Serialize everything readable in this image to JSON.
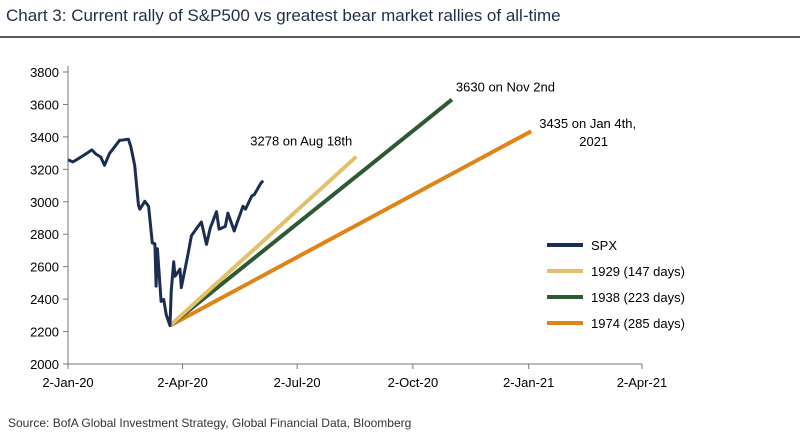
{
  "chart_data": {
    "type": "line",
    "title": "Chart 3: Current rally of S&P500 vs greatest bear market rallies of all-time",
    "source": "Source: BofA Global Investment Strategy, Global Financial Data, Bloomberg",
    "xlabel": "",
    "ylabel": "",
    "x_ticks": [
      "2-Jan-20",
      "2-Apr-20",
      "2-Jul-20",
      "2-Oct-20",
      "2-Jan-21",
      "2-Apr-21"
    ],
    "y_ticks": [
      2000,
      2200,
      2400,
      2600,
      2800,
      3000,
      3200,
      3400,
      3600,
      3800
    ],
    "xlim": [
      "2020-01-02",
      "2021-04-02"
    ],
    "ylim": [
      2000,
      3800
    ],
    "grid": false,
    "legend_position": "bottom-right",
    "series": [
      {
        "name": "SPX",
        "color": "#1b2e52",
        "points": [
          [
            "2020-01-02",
            3258
          ],
          [
            "2020-01-06",
            3246
          ],
          [
            "2020-01-10",
            3265
          ],
          [
            "2020-01-15",
            3289
          ],
          [
            "2020-01-21",
            3320
          ],
          [
            "2020-01-24",
            3295
          ],
          [
            "2020-01-28",
            3276
          ],
          [
            "2020-01-31",
            3225
          ],
          [
            "2020-02-04",
            3298
          ],
          [
            "2020-02-07",
            3328
          ],
          [
            "2020-02-12",
            3379
          ],
          [
            "2020-02-14",
            3380
          ],
          [
            "2020-02-19",
            3386
          ],
          [
            "2020-02-21",
            3338
          ],
          [
            "2020-02-24",
            3225
          ],
          [
            "2020-02-27",
            2978
          ],
          [
            "2020-02-28",
            2954
          ],
          [
            "2020-03-03",
            3003
          ],
          [
            "2020-03-06",
            2972
          ],
          [
            "2020-03-09",
            2746
          ],
          [
            "2020-03-11",
            2741
          ],
          [
            "2020-03-12",
            2480
          ],
          [
            "2020-03-13",
            2711
          ],
          [
            "2020-03-16",
            2386
          ],
          [
            "2020-03-18",
            2398
          ],
          [
            "2020-03-20",
            2305
          ],
          [
            "2020-03-23",
            2237
          ],
          [
            "2020-03-24",
            2447
          ],
          [
            "2020-03-26",
            2630
          ],
          [
            "2020-03-27",
            2541
          ],
          [
            "2020-03-31",
            2585
          ],
          [
            "2020-04-01",
            2471
          ],
          [
            "2020-04-06",
            2664
          ],
          [
            "2020-04-09",
            2790
          ],
          [
            "2020-04-14",
            2846
          ],
          [
            "2020-04-17",
            2875
          ],
          [
            "2020-04-21",
            2737
          ],
          [
            "2020-04-24",
            2837
          ],
          [
            "2020-04-29",
            2939
          ],
          [
            "2020-05-01",
            2831
          ],
          [
            "2020-05-06",
            2848
          ],
          [
            "2020-05-08",
            2930
          ],
          [
            "2020-05-13",
            2820
          ],
          [
            "2020-05-15",
            2864
          ],
          [
            "2020-05-20",
            2972
          ],
          [
            "2020-05-22",
            2955
          ],
          [
            "2020-05-27",
            3036
          ],
          [
            "2020-05-29",
            3044
          ],
          [
            "2020-06-03",
            3112
          ],
          [
            "2020-06-05",
            3130
          ]
        ]
      },
      {
        "name": "1929 (147 days)",
        "color": "#e3c06a",
        "points": [
          [
            "2020-03-23",
            2237
          ],
          [
            "2020-08-18",
            3278
          ]
        ]
      },
      {
        "name": "1938 (223 days)",
        "color": "#2e5a33",
        "points": [
          [
            "2020-03-23",
            2237
          ],
          [
            "2020-11-02",
            3630
          ]
        ]
      },
      {
        "name": "1974 (285 days)",
        "color": "#e08417",
        "points": [
          [
            "2020-03-23",
            2237
          ],
          [
            "2021-01-04",
            3435
          ]
        ]
      }
    ],
    "annotations": [
      {
        "text": "3278 on Aug 18th",
        "x": "2020-08-18",
        "y": 3278
      },
      {
        "text": "3630 on Nov 2nd",
        "x": "2020-11-02",
        "y": 3630
      },
      {
        "text": "3435 on Jan 4th,",
        "x": "2021-01-04",
        "y": 3435
      },
      {
        "text": "2021",
        "x": "2021-01-04",
        "y": 3435
      }
    ]
  }
}
